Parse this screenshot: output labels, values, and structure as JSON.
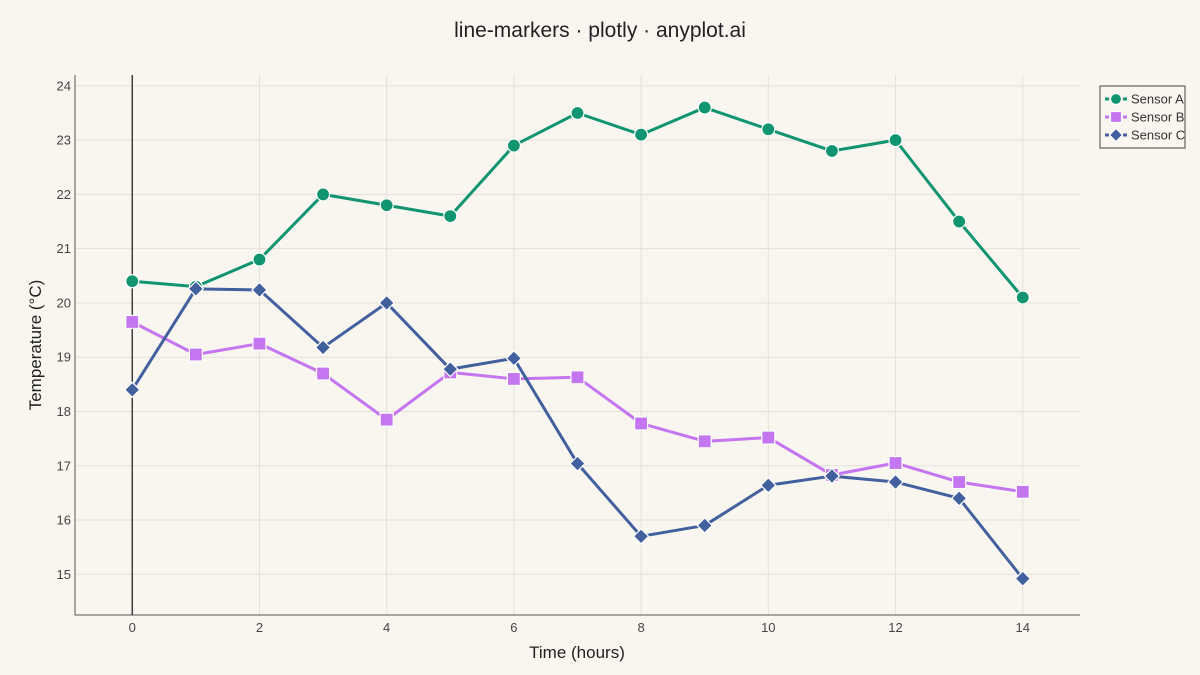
{
  "chart_data": {
    "type": "line",
    "title": "line-markers · plotly · anyplot.ai",
    "xlabel": "Time (hours)",
    "ylabel": "Temperature (°C)",
    "xlim": [
      -0.9,
      14.9
    ],
    "ylim": [
      14.25,
      24.2
    ],
    "x_ticks": [
      0,
      2,
      4,
      6,
      8,
      10,
      12,
      14
    ],
    "y_ticks": [
      15,
      16,
      17,
      18,
      19,
      20,
      21,
      22,
      23,
      24
    ],
    "grid": true,
    "legend_position": "top-right",
    "x": [
      0,
      1,
      2,
      3,
      4,
      5,
      6,
      7,
      8,
      9,
      10,
      11,
      12,
      13,
      14
    ],
    "series": [
      {
        "name": "Sensor A",
        "color": "#109570",
        "marker": "circle",
        "values": [
          20.4,
          20.3,
          20.8,
          22.0,
          21.8,
          21.6,
          22.9,
          23.5,
          23.1,
          23.6,
          23.2,
          22.8,
          23.0,
          21.5,
          20.1
        ]
      },
      {
        "name": "Sensor B",
        "color": "#c475f0",
        "marker": "square",
        "values": [
          19.65,
          19.05,
          19.25,
          18.7,
          17.85,
          18.72,
          18.6,
          18.63,
          17.78,
          17.45,
          17.52,
          16.83,
          17.05,
          16.7,
          16.52
        ]
      },
      {
        "name": "Sensor C",
        "color": "#42609e",
        "marker": "diamond",
        "values": [
          18.4,
          20.26,
          20.24,
          19.18,
          20.0,
          18.78,
          18.98,
          17.04,
          15.7,
          15.9,
          16.64,
          16.81,
          16.7,
          16.4,
          14.92
        ]
      }
    ]
  }
}
